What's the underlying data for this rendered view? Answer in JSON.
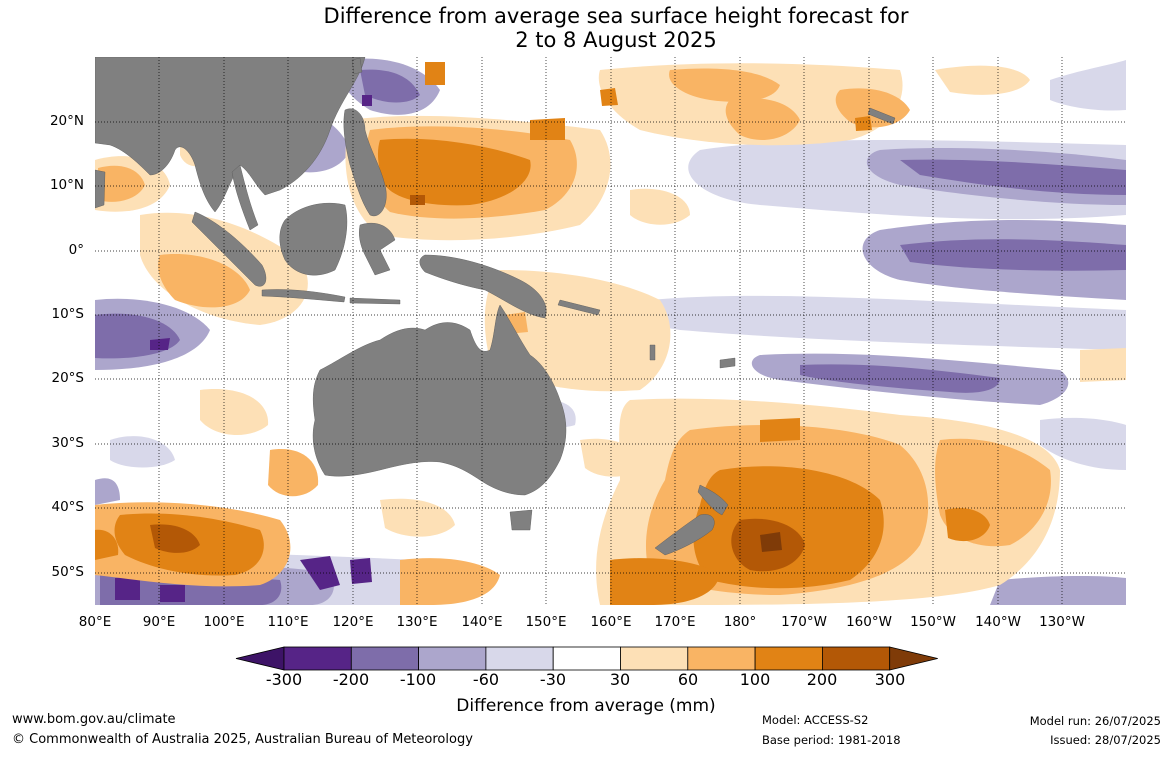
{
  "title": {
    "line1": "Difference from average sea surface height forecast for",
    "line2": "2 to 8 August 2025"
  },
  "map": {
    "lat_labels": [
      "20°N",
      "10°N",
      "0°",
      "10°S",
      "20°S",
      "30°S",
      "40°S",
      "50°S"
    ],
    "lon_labels": [
      "80°E",
      "90°E",
      "100°E",
      "110°E",
      "120°E",
      "130°E",
      "140°E",
      "150°E",
      "160°E",
      "170°E",
      "180°",
      "170°W",
      "160°W",
      "150°W",
      "140°W",
      "130°W"
    ],
    "land_color": "#808080",
    "grid": true
  },
  "colorbar": {
    "title": "Difference from average (mm)",
    "labels": [
      "-300",
      "-200",
      "-100",
      "-60",
      "-30",
      "30",
      "60",
      "100",
      "200",
      "300"
    ],
    "colors": [
      "#3d1367",
      "#562487",
      "#7e6daa",
      "#aca6cc",
      "#d8d8ea",
      "#ffffff",
      "#fde0b6",
      "#f9b464",
      "#e18315",
      "#b35806",
      "#7f3b08"
    ]
  },
  "footer": {
    "website": "www.bom.gov.au/climate",
    "copyright": "© Commonwealth of Australia 2025, Australian Bureau of Meteorology",
    "model": "Model: ACCESS-S2",
    "base_period": "Base period: 1981-2018",
    "model_run": "Model run: 26/07/2025",
    "issued": "Issued: 28/07/2025"
  }
}
